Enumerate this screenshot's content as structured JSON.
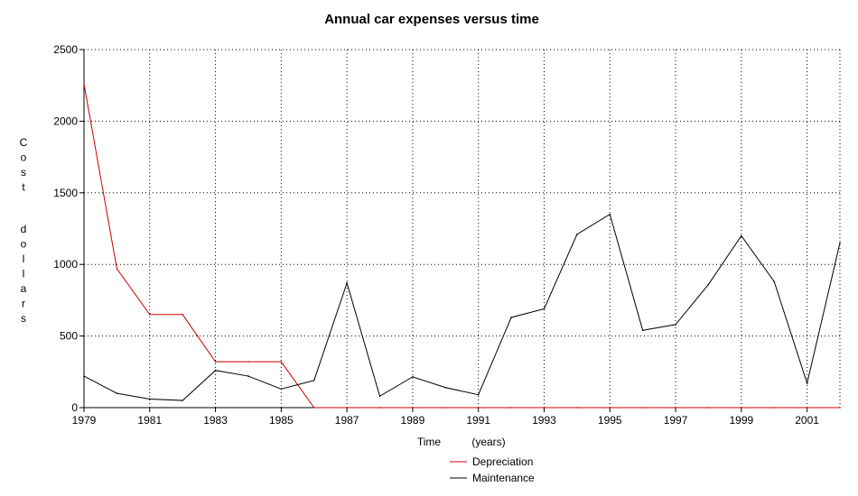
{
  "chart_data": {
    "type": "line",
    "title": "Annual car expenses versus time",
    "xlabel": "Time",
    "xlabel_unit": "(years)",
    "ylabel": "Cost",
    "ylabel_unit": "dollars",
    "x": [
      1979,
      1980,
      1981,
      1982,
      1983,
      1984,
      1985,
      1986,
      1987,
      1988,
      1989,
      1990,
      1991,
      1992,
      1993,
      1994,
      1995,
      1996,
      1997,
      1998,
      1999,
      2000,
      2001,
      2002
    ],
    "xlim": [
      1979,
      2002
    ],
    "ylim": [
      0,
      2500
    ],
    "x_ticks": [
      "1979",
      "1981",
      "1983",
      "1985",
      "1987",
      "1989",
      "1991",
      "1993",
      "1995",
      "1997",
      "1999",
      "2001"
    ],
    "y_ticks": [
      "0",
      "500",
      "1000",
      "1500",
      "2000",
      "2500"
    ],
    "grid": true,
    "legend_position": "bottom-center",
    "series": [
      {
        "name": "Depreciation",
        "color": "#cc0000",
        "values": [
          2260,
          970,
          650,
          650,
          320,
          320,
          320,
          0,
          0,
          0,
          0,
          0,
          0,
          0,
          0,
          0,
          0,
          0,
          0,
          0,
          0,
          0,
          0,
          0
        ]
      },
      {
        "name": "Maintenance",
        "color": "#000000",
        "values": [
          220,
          100,
          60,
          50,
          260,
          220,
          130,
          190,
          870,
          80,
          215,
          140,
          90,
          630,
          690,
          1210,
          1350,
          540,
          580,
          860,
          1200,
          880,
          170,
          1150
        ]
      }
    ]
  }
}
